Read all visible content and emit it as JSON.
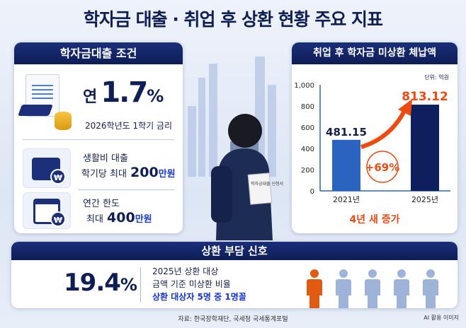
{
  "title": "학자금 대출 · 취업 후 상환 현황 주요 지표",
  "loan_conditions": {
    "header": "학자금대출 조건",
    "rate_prefix": "연",
    "rate_value": "1.7",
    "rate_unit": "%",
    "rate_caption": "2026학년도 1학기 금리",
    "living": {
      "label": "생활비 대출",
      "line_prefix": "학기당 최대",
      "amount": "200",
      "unit": "만원"
    },
    "annual": {
      "label": "연간 한도",
      "line_prefix": "최대",
      "amount": "400",
      "unit": "만원"
    },
    "won_symbol": "₩"
  },
  "illustration": {
    "document_text": "학자금대출 신청서"
  },
  "arrears": {
    "header": "취업 후 학자금 미상환 체납액",
    "unit_label": "단위: 억원",
    "growth_badge": "+69%",
    "caption": "4년 새 증가",
    "colors": {
      "bar_2021": "#2a64c0",
      "bar_2025": "#0d1f5c",
      "accent": "#f04a10"
    }
  },
  "chart_data": {
    "type": "bar",
    "categories": [
      "2021년",
      "2025년"
    ],
    "values": [
      481.15,
      813.12
    ],
    "value_labels": [
      "481.15",
      "813.12"
    ],
    "ylim": [
      0,
      1000
    ],
    "yticks": [
      "0",
      "200",
      "400",
      "600",
      "800",
      "1,000"
    ],
    "ylabel": "단위: 억원",
    "grid": false
  },
  "repayment": {
    "header": "상환 부담 신호",
    "percent": "19.4",
    "percent_unit": "%",
    "desc_line1": "2025년 상환 대상",
    "desc_line2": "금액 기준 미상환 비율",
    "highlight": "상환 대상자 5명 중 1명꼴",
    "people_total": 5,
    "people_highlighted": 1,
    "colors": {
      "highlight": "#e05a10",
      "other": "#9db4d8"
    }
  },
  "footer": {
    "source": "자료: 한국장학재단, 국세청 국세통계포털",
    "note": "AI 활용 이미지"
  }
}
